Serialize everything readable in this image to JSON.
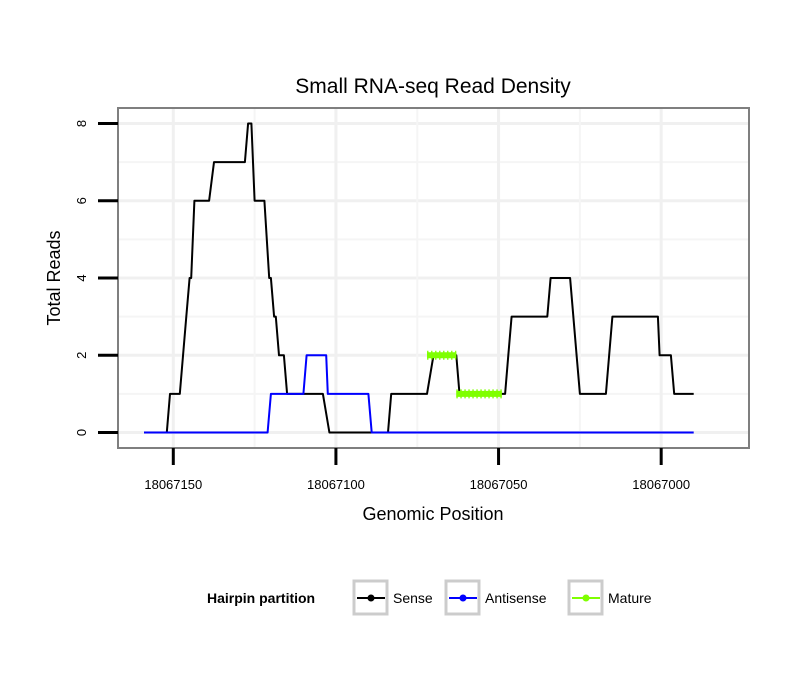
{
  "chart_data": {
    "type": "line",
    "title": "Small RNA-seq Read Density",
    "xlabel": "Genomic Position",
    "ylabel": "Total Reads",
    "x_reversed": true,
    "xlim": [
      18067167,
      18066973
    ],
    "ylim": [
      -0.4,
      8.4
    ],
    "x_ticks": [
      {
        "value": 18067150,
        "label": "18067150"
      },
      {
        "value": 18067100,
        "label": "18067100"
      },
      {
        "value": 18067050,
        "label": "18067050"
      },
      {
        "value": 18067000,
        "label": "18067000"
      }
    ],
    "y_ticks": [
      {
        "value": 0,
        "label": "0"
      },
      {
        "value": 2,
        "label": "2"
      },
      {
        "value": 4,
        "label": "4"
      },
      {
        "value": 6,
        "label": "6"
      },
      {
        "value": 8,
        "label": "8"
      }
    ],
    "grid": true,
    "legend": {
      "title": "Hairpin partition",
      "position": "bottom"
    },
    "series": [
      {
        "name": "Sense",
        "color": "#000000",
        "points": [
          [
            18067159,
            0
          ],
          [
            18067152,
            0
          ],
          [
            18067151,
            1
          ],
          [
            18067148,
            1
          ],
          [
            18067146,
            3
          ],
          [
            18067145,
            4
          ],
          [
            18067144.5,
            4
          ],
          [
            18067143.5,
            6
          ],
          [
            18067139,
            6
          ],
          [
            18067137.5,
            7
          ],
          [
            18067128,
            7
          ],
          [
            18067127,
            8
          ],
          [
            18067126,
            8
          ],
          [
            18067125,
            6
          ],
          [
            18067122,
            6
          ],
          [
            18067120.5,
            4
          ],
          [
            18067120,
            4
          ],
          [
            18067119,
            3
          ],
          [
            18067118.5,
            3
          ],
          [
            18067117.5,
            2
          ],
          [
            18067116,
            2
          ],
          [
            18067115,
            1
          ],
          [
            18067104,
            1
          ],
          [
            18067102,
            0
          ],
          [
            18067084,
            0
          ],
          [
            18067083,
            1
          ],
          [
            18067072,
            1
          ],
          [
            18067070,
            2
          ],
          [
            18067063,
            2
          ],
          [
            18067062,
            1
          ],
          [
            18067048,
            1
          ],
          [
            18067047,
            2
          ],
          [
            18067046,
            3
          ],
          [
            18067035,
            3
          ],
          [
            18067034,
            4
          ],
          [
            18067028,
            4
          ],
          [
            18067026,
            2
          ],
          [
            18067025,
            1
          ],
          [
            18067017,
            1
          ],
          [
            18067015,
            3
          ],
          [
            18067001,
            3
          ],
          [
            18067000.5,
            2
          ],
          [
            18066997,
            2
          ],
          [
            18066996,
            1
          ],
          [
            18066990,
            1
          ]
        ]
      },
      {
        "name": "Antisense",
        "color": "#0000ff",
        "points": [
          [
            18067159,
            0
          ],
          [
            18067121,
            0
          ],
          [
            18067120,
            1
          ],
          [
            18067110,
            1
          ],
          [
            18067109,
            2
          ],
          [
            18067103,
            2
          ],
          [
            18067102.5,
            1
          ],
          [
            18067090,
            1
          ],
          [
            18067089,
            0
          ],
          [
            18066990,
            0
          ]
        ]
      },
      {
        "name": "Mature",
        "color": "#7fff00",
        "segments": [
          [
            [
              18067072,
              2
            ],
            [
              18067063,
              2
            ]
          ],
          [
            [
              18067063,
              1
            ],
            [
              18067049,
              1
            ]
          ]
        ]
      }
    ]
  }
}
